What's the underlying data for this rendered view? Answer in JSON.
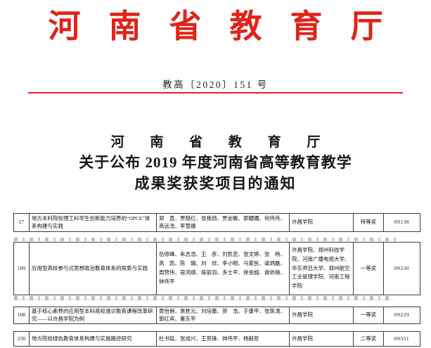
{
  "colors": {
    "red": "#e02318",
    "text": "#1c1c1c",
    "grid": "#3c3c3c"
  },
  "letterhead": {
    "agency": "河南省教育厅",
    "doc_number": "教高〔2020〕151 号"
  },
  "title": {
    "line1": "河 南 省 教 育 厅",
    "line2": "关于公布 2019 年度河南省高等教育教学",
    "line3": "成果奖获奖项目的通知"
  },
  "table": {
    "columns": [
      "序号",
      "成果名称",
      "主要完成人",
      "主要完成单位",
      "获奖等级",
      "证书编号"
    ],
    "rows": [
      {
        "seq": "17",
        "project": "地方本科院校理工科学生创新能力培养的“OPCE”体系构建与实践",
        "team": "郑　直、贾晓红、张艳鸽、贾会敏、郭媚媚、何伟伟、高远浩、李慧娜",
        "college": "许昌学院",
        "award": "特等奖",
        "code": "09138"
      },
      {
        "seq": "109",
        "project": "应用型高校参与式思想政治教育体系的探索与实践",
        "team": "岳修峰、朱志浩、王　彦、刘凯亚、张文婷、张　杨、高　凯、陈　璐、刘　欣、李小明、马爱民、梁炳磊、周赞伟、寇鸿顺、侯丽羽、多士平、徐金超、谢依楠、钟伟平",
        "college": "许昌学院、郑州科技学院、河南广播电视大学、华东师范大学、郑州航空工业管理学院、河南工程学院",
        "award": "一等奖",
        "code": "09230"
      },
      {
        "seq": "108",
        "project": "基于核心素养的应用型本科高校通识教育课程改革研究——以许昌学院为例",
        "team": "黄怡俐、袁胜元、刘培蕾、贺　浩、于康平、张笑涛、郭红宾、董东平",
        "college": "许昌学院",
        "award": "一等奖",
        "code": "09229"
      },
      {
        "seq": "230",
        "project": "地方院校绿色教育体系构建与实施路径研究",
        "team": "杜书延、张成兴、王贺锋、钟伟平、杨毅哲",
        "college": "许昌学院",
        "award": "二等奖",
        "code": "09351"
      }
    ]
  }
}
